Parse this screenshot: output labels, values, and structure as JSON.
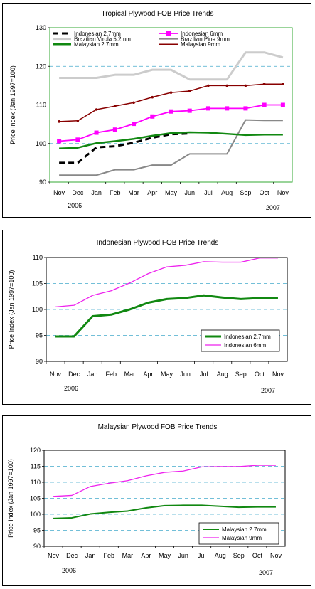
{
  "chart_data": [
    {
      "type": "line",
      "title": "Tropical Plywood FOB Price Trends",
      "ylabel": "Price Index (Jan 1997=100)",
      "xlabel": "",
      "categories": [
        "Nov",
        "Dec",
        "Jan",
        "Feb",
        "Mar",
        "Apr",
        "May",
        "Jun",
        "Jul",
        "Aug",
        "Sep",
        "Oct",
        "Nov"
      ],
      "year_labels": {
        "start": "2006",
        "end": "2007"
      },
      "ylim": [
        90,
        130
      ],
      "yticks": [
        90,
        100,
        110,
        120,
        130
      ],
      "plot_bg": "#ffffff",
      "frame_color": "#33aa33",
      "grid_color": "#44aacc",
      "legend_position": "top",
      "series": [
        {
          "name": "Indonesian 2.7mm",
          "color": "#000000",
          "dash": "8,5",
          "width": 3,
          "marker": "none",
          "values": [
            95,
            95,
            99,
            99.3,
            100.2,
            101.5,
            102.4,
            102.6,
            null,
            null,
            null,
            null,
            null
          ]
        },
        {
          "name": "Indonesian 6mm",
          "color": "#ff00ff",
          "width": 1.8,
          "marker": "square",
          "values": [
            100.6,
            101,
            102.8,
            103.6,
            105.1,
            107,
            108.3,
            108.5,
            109.1,
            109.1,
            109.1,
            110,
            110
          ]
        },
        {
          "name": "Brazilian Virola 5.2mm",
          "color": "#cccccc",
          "width": 3,
          "marker": "none",
          "values": [
            117,
            117,
            117,
            117.8,
            117.8,
            119.1,
            119.1,
            116.6,
            116.6,
            116.6,
            123.6,
            123.6,
            122.3
          ]
        },
        {
          "name": "Brazilian Pine 9mm",
          "color": "#888888",
          "width": 2,
          "marker": "none",
          "values": [
            91.8,
            91.8,
            91.8,
            93.2,
            93.2,
            94.4,
            94.4,
            97.3,
            97.3,
            97.3,
            106.1,
            106,
            106
          ]
        },
        {
          "name": "Malaysian 2.7mm",
          "color": "#118811",
          "width": 2.5,
          "marker": "none",
          "values": [
            98.7,
            98.9,
            100.1,
            100.6,
            101.2,
            102,
            102.7,
            102.9,
            102.8,
            102.5,
            102.2,
            102.3,
            102.3
          ]
        },
        {
          "name": "Malaysian 9mm",
          "color": "#880000",
          "width": 1.5,
          "marker": "dot",
          "values": [
            105.7,
            105.9,
            108.8,
            109.7,
            110.6,
            112,
            113.2,
            113.6,
            115,
            115,
            115,
            115.4,
            115.4
          ]
        }
      ]
    },
    {
      "type": "line",
      "title": "Indonesian Plywood FOB Price Trends",
      "ylabel": "Price Index (Jan 1997=100)",
      "xlabel": "",
      "categories": [
        "Nov",
        "Dec",
        "Jan",
        "Feb",
        "Mar",
        "Apr",
        "May",
        "Jun",
        "Jul",
        "Aug",
        "Sep",
        "Oct",
        "Nov"
      ],
      "year_labels": {
        "start": "2006",
        "end": "2007"
      },
      "ylim": [
        90,
        110
      ],
      "yticks": [
        90,
        95,
        100,
        105,
        110
      ],
      "plot_bg": "#ffffff",
      "frame_color": "#000000",
      "grid_color": "#44aacc",
      "legend_position": "bottom-right",
      "series": [
        {
          "name": "Indonesian 2.7mm",
          "color": "#118811",
          "width": 3,
          "marker": "none",
          "values": [
            94.8,
            94.8,
            98.7,
            99,
            100,
            101.3,
            102,
            102.2,
            102.7,
            102.3,
            102,
            102.2,
            102.2
          ]
        },
        {
          "name": "Indonesian 6mm",
          "color": "#ee22ee",
          "width": 1.3,
          "marker": "none",
          "values": [
            100.5,
            100.8,
            102.7,
            103.6,
            105.1,
            106.9,
            108.2,
            108.5,
            109.2,
            109.1,
            109.1,
            109.9,
            109.9
          ]
        }
      ]
    },
    {
      "type": "line",
      "title": "Malaysian Plywood FOB Price Trends",
      "ylabel": "Price Index (Jan 1997=100)",
      "xlabel": "",
      "categories": [
        "Nov",
        "Dec",
        "Jan",
        "Feb",
        "Mar",
        "Apr",
        "May",
        "Jun",
        "Jul",
        "Aug",
        "Sep",
        "Oct",
        "Nov"
      ],
      "year_labels": {
        "start": "2006",
        "end": "2007"
      },
      "ylim": [
        90,
        120
      ],
      "yticks": [
        90,
        95,
        100,
        105,
        110,
        115,
        120
      ],
      "plot_bg": "#ffffff",
      "frame_color": "#000000",
      "grid_color": "#44aacc",
      "legend_position": "bottom-right",
      "series": [
        {
          "name": "Malaysian 2.7mm",
          "color": "#118811",
          "width": 2,
          "marker": "none",
          "values": [
            98.7,
            98.9,
            100.1,
            100.6,
            101,
            102,
            102.7,
            102.8,
            102.8,
            102.5,
            102.2,
            102.3,
            102.3
          ]
        },
        {
          "name": "Malaysian 9mm",
          "color": "#ee22ee",
          "width": 1.3,
          "marker": "none",
          "values": [
            105.6,
            105.9,
            108.7,
            109.7,
            110.5,
            112,
            113.1,
            113.5,
            114.8,
            114.9,
            114.9,
            115.3,
            115.3
          ]
        }
      ]
    }
  ]
}
